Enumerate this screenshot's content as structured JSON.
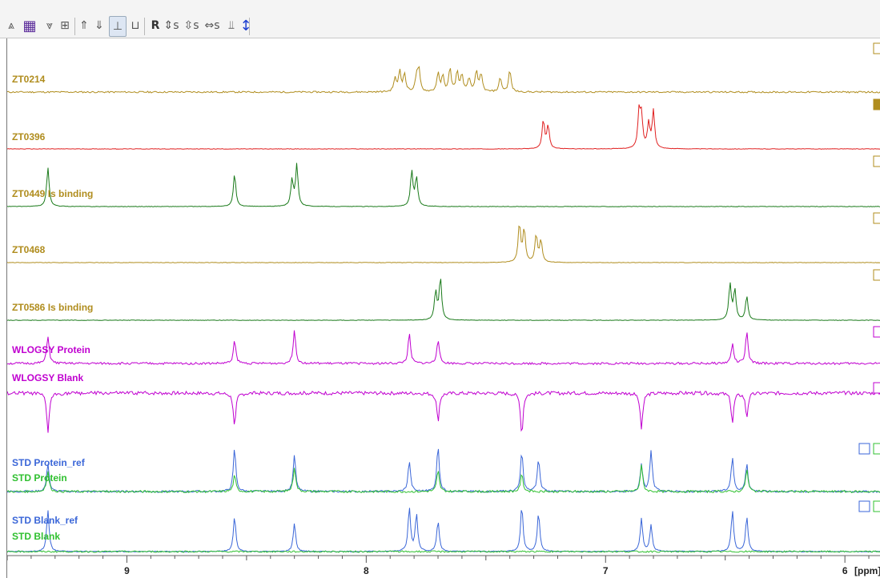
{
  "toolbar": {
    "buttons": [
      {
        "icon": "stack-up-icon",
        "glyph": "⩓"
      },
      {
        "icon": "color-grid-icon",
        "glyph": "▦"
      },
      {
        "icon": "stack-down-icon",
        "glyph": "⩔"
      },
      {
        "icon": "overlay-arrange-icon",
        "glyph": "⊞"
      },
      {
        "icon": "move-up-icon",
        "glyph": "⇑"
      },
      {
        "icon": "move-down-icon",
        "glyph": "⇓"
      },
      {
        "icon": "multiple-display-icon",
        "glyph": "⊥"
      },
      {
        "icon": "baseline-icon",
        "glyph": "⊔"
      },
      {
        "icon": "reset-icon",
        "glyph": "R"
      },
      {
        "icon": "scale-vertical-icon",
        "glyph": "⇕s"
      },
      {
        "icon": "shift-vertical-icon",
        "glyph": "⇳s"
      },
      {
        "icon": "scale-horizontal-icon",
        "glyph": "⇔s"
      },
      {
        "icon": "peaks-icon",
        "glyph": "⫫"
      },
      {
        "icon": "vertical-range-icon",
        "glyph": "↕"
      }
    ]
  },
  "spectra": [
    {
      "label": "ZT0214",
      "color": "#b08d1e",
      "label_color": "#b08d1e",
      "peaks": [
        7.88,
        7.86,
        7.84,
        7.79,
        7.78,
        7.7,
        7.68,
        7.65,
        7.62,
        7.6,
        7.57,
        7.54,
        7.52,
        7.44,
        7.4
      ]
    },
    {
      "label": "ZT0396",
      "color": "#e02020",
      "label_color": "#b08d1e",
      "peaks": [
        7.26,
        7.24,
        6.86,
        6.85,
        6.82,
        6.8
      ]
    },
    {
      "label": "ZT0449   Is binding",
      "color": "#1a7a1a",
      "label_color": "#b08d1e",
      "peaks": [
        9.33,
        8.55,
        8.31,
        8.29,
        7.81,
        7.79
      ]
    },
    {
      "label": "ZT0468",
      "color": "#b08d1e",
      "label_color": "#b08d1e",
      "peaks": [
        7.36,
        7.34,
        7.29,
        7.27
      ]
    },
    {
      "label": "ZT0586   Is binding",
      "color": "#1a7a1a",
      "label_color": "#b08d1e",
      "peaks": [
        7.71,
        7.69,
        6.48,
        6.46,
        6.41
      ]
    },
    {
      "label": "WLOGSY Protein",
      "color": "#c000d0",
      "label_color": "#c000d0",
      "peaks": [
        9.33,
        8.55,
        8.3,
        7.82,
        7.7,
        6.47,
        6.41
      ]
    },
    {
      "label": "WLOGSY Blank",
      "color": "#c000d0",
      "label_color": "#c000d0",
      "peaks": [
        9.33,
        8.55,
        7.7,
        7.35,
        6.85,
        6.47,
        6.41
      ]
    },
    {
      "label": "STD Protein_ref",
      "color": "#3a66d8",
      "label_color": "#3a66d8",
      "peaks": [
        9.33,
        8.55,
        8.3,
        7.82,
        7.7,
        7.35,
        7.28,
        6.85,
        6.81,
        6.47,
        6.41
      ]
    },
    {
      "label": "STD Protein",
      "color": "#30c030",
      "label_color": "#30c030",
      "peaks": [
        9.33,
        8.55,
        8.3,
        7.7,
        7.35,
        6.85,
        6.41
      ]
    },
    {
      "label": "STD Blank_ref",
      "color": "#3a66d8",
      "label_color": "#3a66d8",
      "peaks": [
        9.33,
        8.55,
        8.3,
        7.82,
        7.79,
        7.7,
        7.35,
        7.28,
        6.85,
        6.81,
        6.47,
        6.41
      ]
    },
    {
      "label": "STD Blank",
      "color": "#30c030",
      "label_color": "#30c030",
      "peaks": []
    }
  ],
  "axis": {
    "tick_labels": [
      "9",
      "8",
      "7",
      "6"
    ],
    "unit": "[ppm]",
    "xlim": [
      9.5,
      5.85
    ],
    "reversed": true
  }
}
